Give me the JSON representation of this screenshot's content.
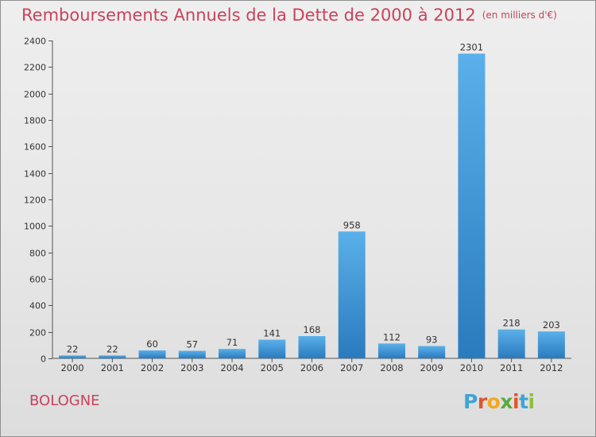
{
  "title": "Remboursements Annuels de la Dette de 2000 à 2012",
  "unit": "(en milliers d'€)",
  "commune": "BOLOGNE",
  "logo": {
    "text": "Proxiti",
    "letters": [
      "P",
      "r",
      "o",
      "x",
      "i",
      "t",
      "i"
    ],
    "colors": [
      "#3fa3d6",
      "#e0562b",
      "#f2a81d",
      "#5aab3c",
      "#e0562b",
      "#3fa3d6",
      "#8cbf3a"
    ]
  },
  "colors": {
    "bar_light": "#5ab0ea",
    "bar_dark": "#2a7bbd",
    "title": "#c8435c",
    "axis": "#555555"
  },
  "chart_data": {
    "type": "bar",
    "title": "Remboursements Annuels de la Dette de 2000 à 2012",
    "subtitle": "(en milliers d'€)",
    "categories": [
      "2000",
      "2001",
      "2002",
      "2003",
      "2004",
      "2005",
      "2006",
      "2007",
      "2008",
      "2009",
      "2010",
      "2011",
      "2012"
    ],
    "values": [
      22,
      22,
      60,
      57,
      71,
      141,
      168,
      958,
      112,
      93,
      2301,
      218,
      203
    ],
    "ylim": [
      0,
      2400
    ],
    "yticks": [
      0,
      200,
      400,
      600,
      800,
      1000,
      1200,
      1400,
      1600,
      1800,
      2000,
      2200,
      2400
    ],
    "grid": false,
    "legend": "none"
  }
}
